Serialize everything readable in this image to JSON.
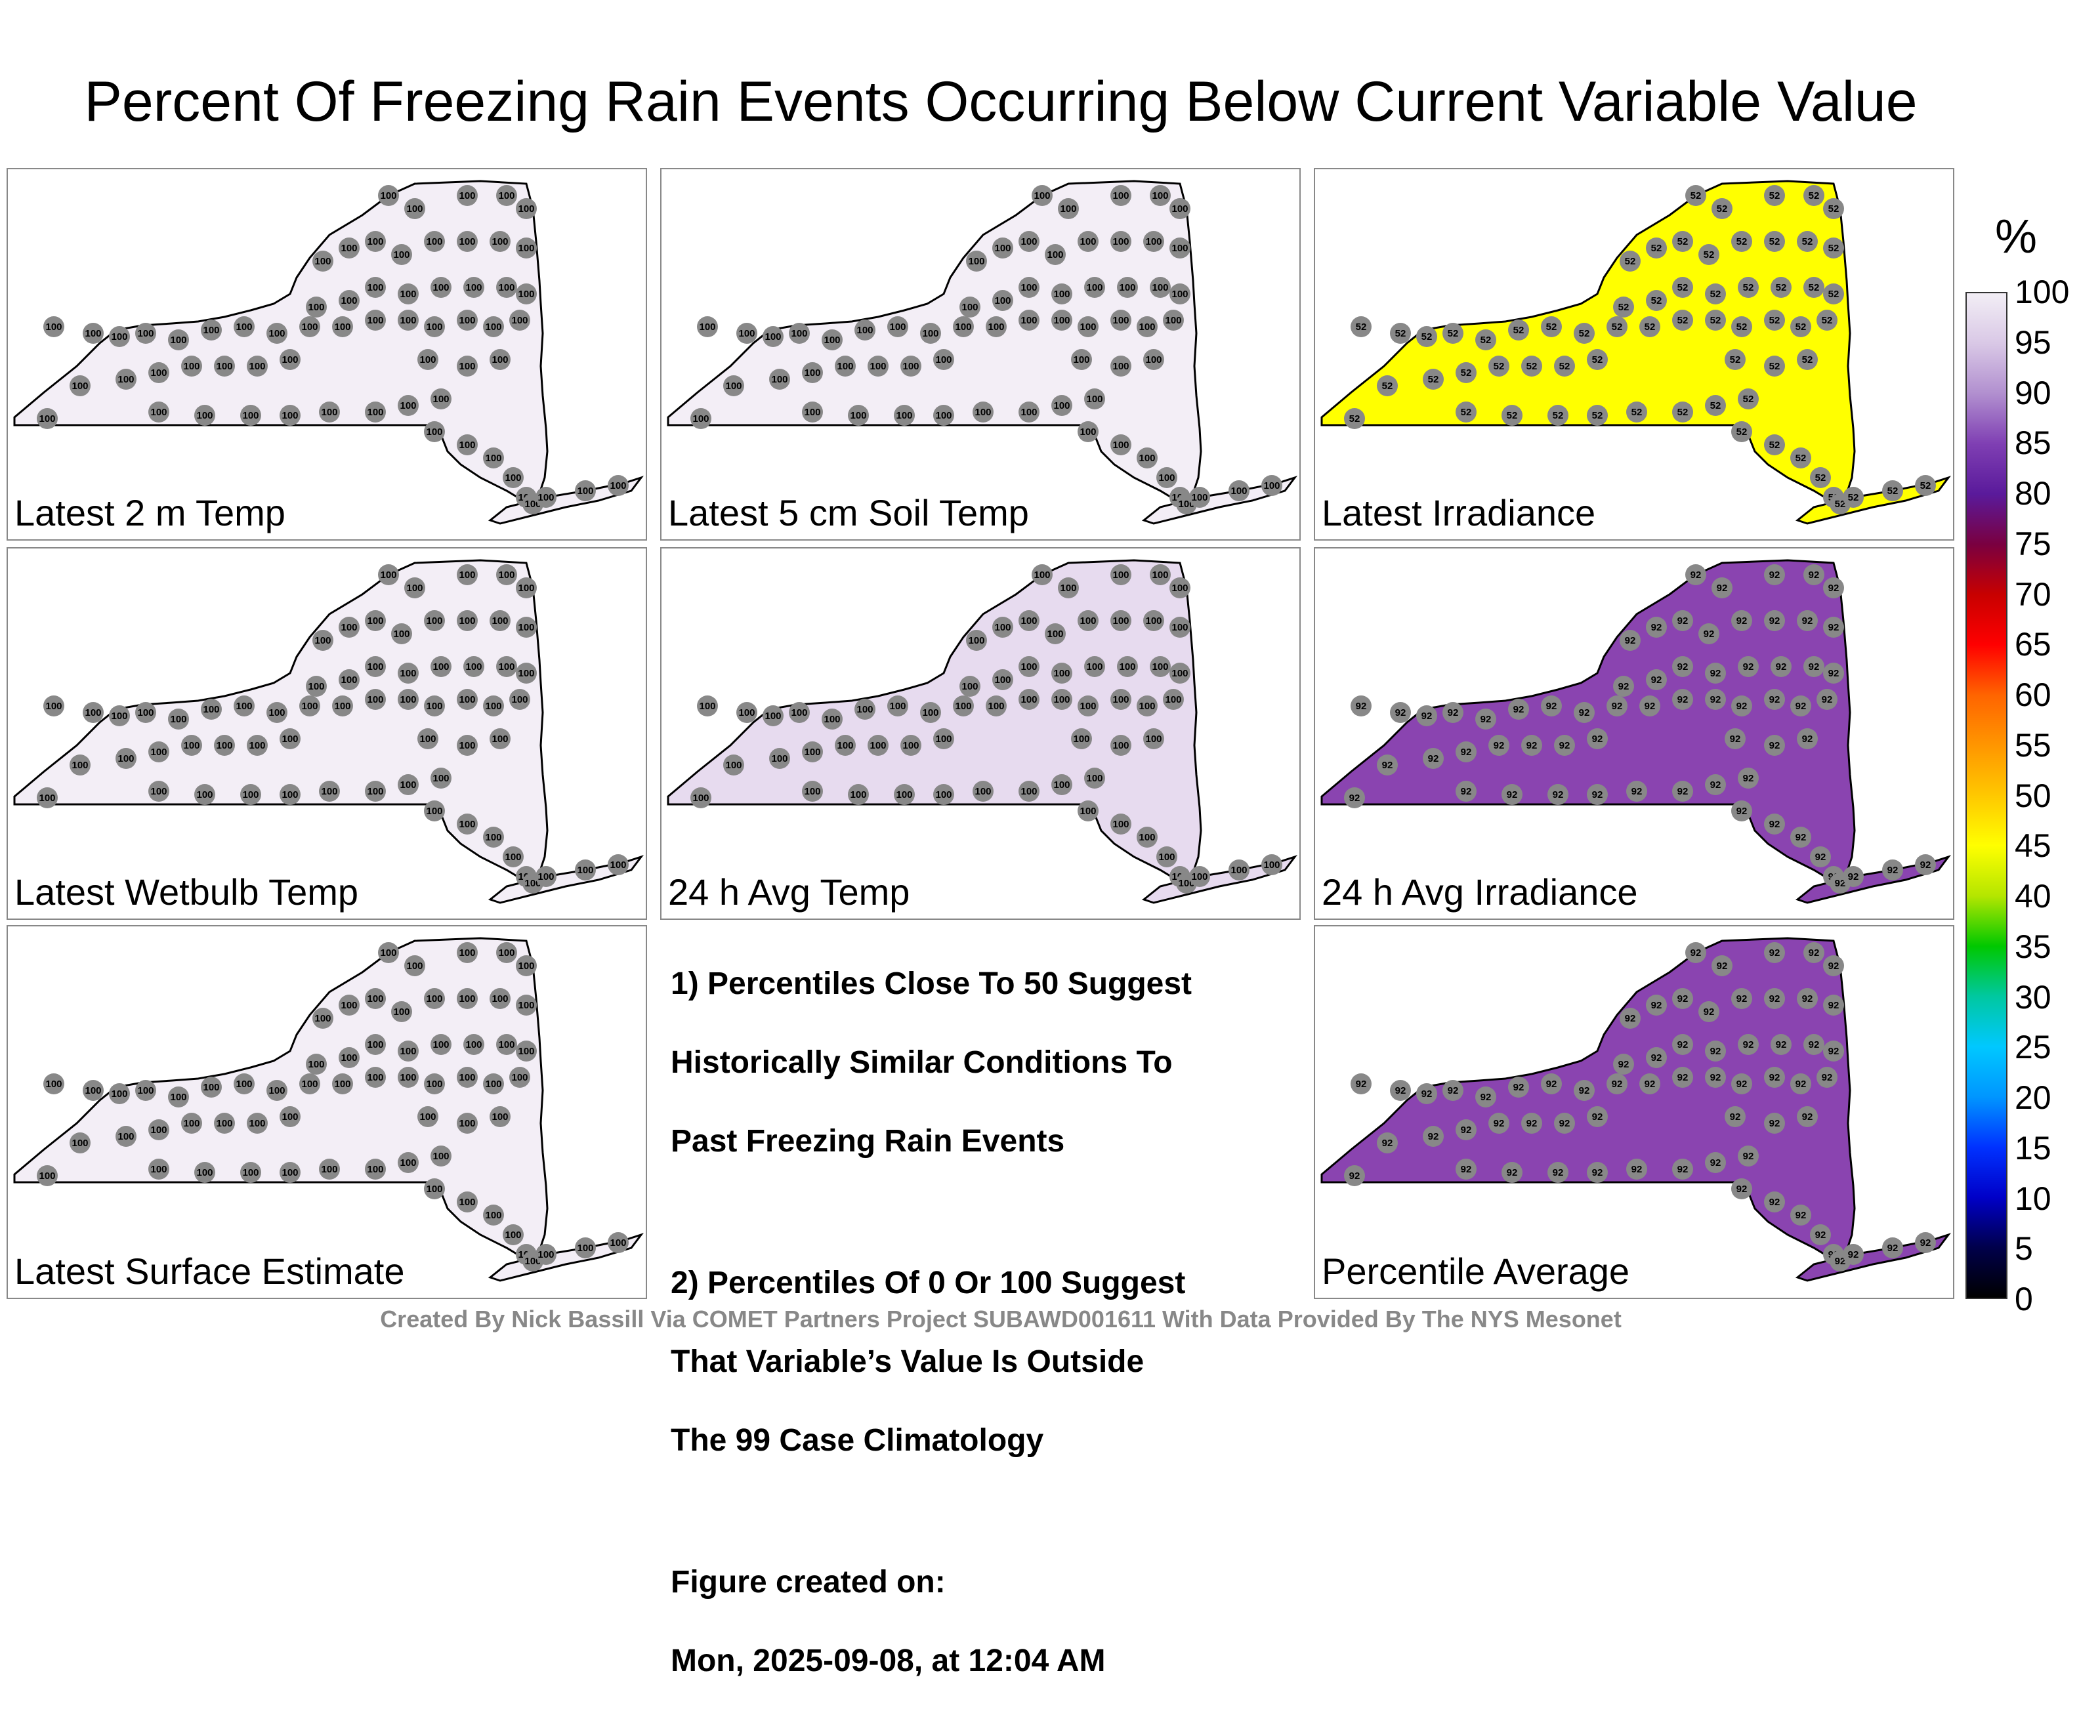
{
  "title": "Percent Of Freezing Rain Events Occurring Below Current Variable Value",
  "colorbar": {
    "unit": "%",
    "ticks": [
      "100",
      "95",
      "90",
      "85",
      "80",
      "75",
      "70",
      "65",
      "60",
      "55",
      "50",
      "45",
      "40",
      "35",
      "30",
      "25",
      "20",
      "15",
      "10",
      "5",
      "0"
    ],
    "colors": [
      "#f2eef5",
      "#d9c8e6",
      "#b18fcf",
      "#7f3fb3",
      "#5a1a9b",
      "#7a0040",
      "#c80000",
      "#ff0000",
      "#ff6400",
      "#ff9600",
      "#ffc800",
      "#ffff00",
      "#b4e600",
      "#00c800",
      "#00c8a0",
      "#00c8ff",
      "#0096ff",
      "#0032ff",
      "#0000c8",
      "#00004b",
      "#000000"
    ]
  },
  "colors": {
    "map_100": "#f3eef6",
    "map_52": "#ffff00",
    "map_92": "#8a44b0",
    "map_mixed": "#e7dbef",
    "station": "#888888"
  },
  "panels": [
    {
      "label": "Latest 2 m Temp",
      "value": "100",
      "fill_key": "map_100"
    },
    {
      "label": "Latest 5 cm Soil Temp",
      "value": "100",
      "fill_key": "map_100"
    },
    {
      "label": "Latest Irradiance",
      "value": "52",
      "fill_key": "map_52"
    },
    {
      "label": "Latest Wetbulb Temp",
      "value": "100",
      "fill_key": "map_100"
    },
    {
      "label": "24 h Avg Temp",
      "value": "100",
      "fill_key": "map_mixed"
    },
    {
      "label": "24 h Avg Irradiance",
      "value": "92",
      "fill_key": "map_92"
    },
    {
      "label": "Latest Surface Estimate",
      "value": "100",
      "fill_key": "map_100"
    },
    {
      "label": "Percentile Average",
      "value": "92",
      "fill_key": "map_92"
    }
  ],
  "notes": {
    "note1": [
      "1) Percentiles Close To 50 Suggest",
      "Historically Similar Conditions To",
      "Past Freezing Rain Events"
    ],
    "note2": [
      "2) Percentiles Of 0 Or 100 Suggest",
      "That Variable’s Value Is Outside",
      "The 99 Case Climatology"
    ],
    "created_label": "Figure created on:",
    "created_date": "Mon, 2025-09-08, at 12:04 AM"
  },
  "footer": "Created By Nick Bassill Via COMET Partners Project SUBAWD001611 With Data Provided By The NYS Mesonet"
}
